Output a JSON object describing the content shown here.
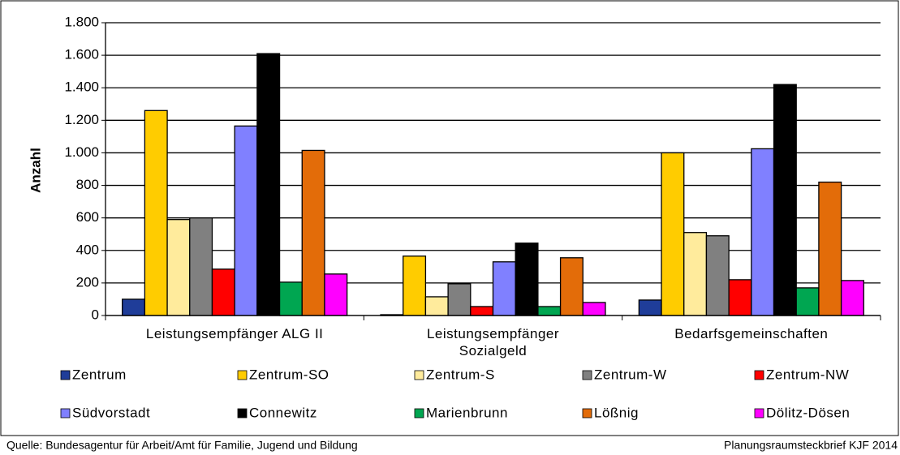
{
  "chart_data": {
    "type": "bar",
    "y_label": "Anzahl",
    "categories": [
      "Leistungsempfänger ALG II",
      "Leistungsempfänger Sozialgeld",
      "Bedarfsgemeinschaften"
    ],
    "series": [
      {
        "name": "Zentrum",
        "color": "#1f3d99",
        "values": [
          100,
          5,
          95
        ]
      },
      {
        "name": "Zentrum-SO",
        "color": "#ffcc00",
        "values": [
          1260,
          365,
          1000
        ]
      },
      {
        "name": "Zentrum-S",
        "color": "#ffeb9c",
        "values": [
          590,
          115,
          510
        ]
      },
      {
        "name": "Zentrum-W",
        "color": "#808080",
        "values": [
          600,
          195,
          490
        ]
      },
      {
        "name": "Zentrum-NW",
        "color": "#ff0000",
        "values": [
          285,
          55,
          220
        ]
      },
      {
        "name": "Südvorstadt",
        "color": "#8080ff",
        "values": [
          1165,
          330,
          1025
        ]
      },
      {
        "name": "Connewitz",
        "color": "#000000",
        "values": [
          1610,
          445,
          1420
        ]
      },
      {
        "name": "Marienbrunn",
        "color": "#00a651",
        "values": [
          205,
          55,
          170
        ]
      },
      {
        "name": "Lößnig",
        "color": "#e36c09",
        "values": [
          1015,
          355,
          820
        ]
      },
      {
        "name": "Dölitz-Dösen",
        "color": "#ff00ff",
        "values": [
          255,
          80,
          215
        ]
      }
    ],
    "ylim": [
      0,
      1800
    ],
    "yticks": [
      0,
      200,
      400,
      600,
      800,
      {
        "value": 1000,
        "label": "1.000"
      },
      {
        "value": 1200,
        "label": "1.200"
      },
      {
        "value": 1400,
        "label": "1.400"
      },
      {
        "value": 1600,
        "label": "1.600"
      },
      {
        "value": 1800,
        "label": "1.800"
      }
    ],
    "grid": true,
    "source": "Quelle: Bundesagentur für Arbeit/Amt für Familie, Jugend und Bildung",
    "credit": "Planungsraumsteckbrief KJF 2014"
  }
}
